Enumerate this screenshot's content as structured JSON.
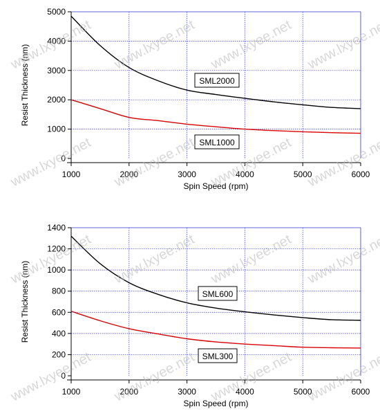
{
  "watermark": "www.lxyee.net",
  "chart_data": [
    {
      "type": "line",
      "title": "",
      "xlabel": "Spin Speed (rpm)",
      "ylabel": "Resist Thickness (nm)",
      "xlim": [
        1000,
        6000
      ],
      "ylim": [
        0,
        5000
      ],
      "xticks": [
        1000,
        2000,
        3000,
        4000,
        5000,
        6000
      ],
      "yticks": [
        0,
        1000,
        2000,
        3000,
        4000,
        5000
      ],
      "grid": true,
      "grid_color": "#3333cc",
      "x": [
        1000,
        1500,
        2000,
        2500,
        3000,
        3500,
        4000,
        4500,
        5000,
        5500,
        6000
      ],
      "series": [
        {
          "name": "SML2000",
          "color": "#000000",
          "values": [
            4850,
            3850,
            3100,
            2650,
            2330,
            2180,
            2050,
            1930,
            1830,
            1740,
            1700
          ]
        },
        {
          "name": "SML1000",
          "color": "#dd0000",
          "values": [
            2000,
            1700,
            1400,
            1290,
            1170,
            1080,
            1000,
            950,
            910,
            880,
            860
          ]
        }
      ]
    },
    {
      "type": "line",
      "title": "",
      "xlabel": "Spin Speed (rpm)",
      "ylabel": "Resist Thickness (nm)",
      "xlim": [
        1000,
        6000
      ],
      "ylim": [
        0,
        1400
      ],
      "xticks": [
        1000,
        2000,
        3000,
        4000,
        5000,
        6000
      ],
      "yticks": [
        0,
        200,
        400,
        600,
        800,
        1000,
        1200,
        1400
      ],
      "grid": true,
      "grid_color": "#3333cc",
      "x": [
        1000,
        1500,
        2000,
        2500,
        3000,
        3500,
        4000,
        4500,
        5000,
        5500,
        6000
      ],
      "series": [
        {
          "name": "SML600",
          "color": "#000000",
          "values": [
            1320,
            1060,
            880,
            770,
            690,
            640,
            605,
            575,
            550,
            530,
            525
          ]
        },
        {
          "name": "SML300",
          "color": "#dd0000",
          "values": [
            610,
            520,
            445,
            395,
            350,
            320,
            300,
            285,
            270,
            265,
            262
          ]
        }
      ]
    }
  ]
}
